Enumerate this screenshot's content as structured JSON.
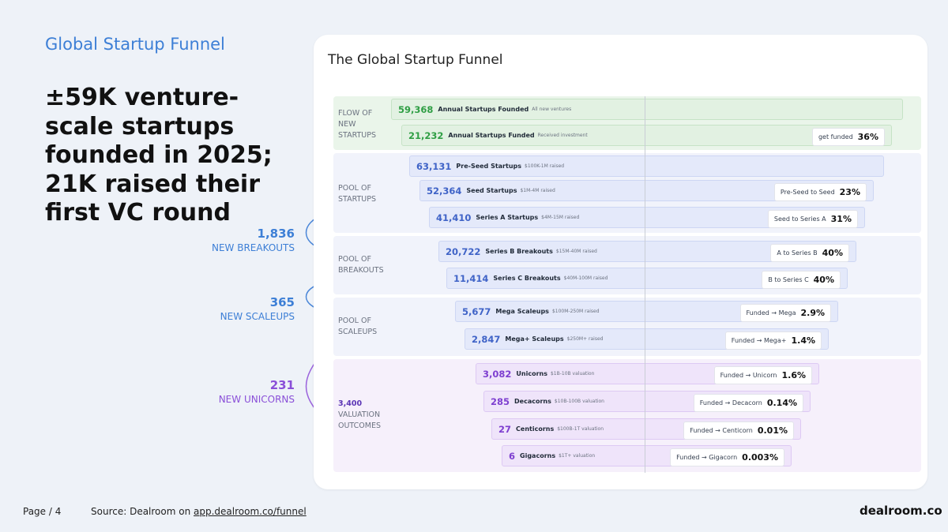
{
  "kicker": "Global Startup Funnel",
  "headline": "±59K venture-scale startups founded in 2025; 21K raised their first VC round",
  "side_stats": [
    {
      "value": "1,836",
      "label": "NEW BREAKOUTS",
      "color": "#3d7fd6"
    },
    {
      "value": "365",
      "label": "NEW SCALEUPS",
      "color": "#3d7fd6"
    },
    {
      "value": "231",
      "label": "NEW UNICORNS",
      "color": "#8a4fd8"
    }
  ],
  "footer": {
    "page": "Page / 4",
    "source_prefix": "Source: Dealroom on ",
    "source_link": "app.dealroom.co/funnel",
    "brand": "dealroom.co"
  },
  "chart_data": {
    "type": "funnel",
    "title": "The Global Startup Funnel",
    "groups": [
      {
        "label": "FLOW OF NEW STARTUPS",
        "bg": "#eaf5ea",
        "rows": [
          {
            "value": 59368,
            "display": "59,368",
            "name": "Annual Startups Founded",
            "detail": "All new ventures",
            "ratio_label": "",
            "ratio": ""
          },
          {
            "value": 21232,
            "display": "21,232",
            "name": "Annual Startups Funded",
            "detail": "Received investment",
            "ratio_label": "get funded",
            "ratio": "36%"
          }
        ]
      },
      {
        "label": "POOL OF STARTUPS",
        "bg": "#f1f3fb",
        "rows": [
          {
            "value": 63131,
            "display": "63,131",
            "name": "Pre-Seed Startups",
            "detail": "$100K-1M raised",
            "ratio_label": "",
            "ratio": ""
          },
          {
            "value": 52364,
            "display": "52,364",
            "name": "Seed Startups",
            "detail": "$1M-4M raised",
            "ratio_label": "Pre-Seed to Seed",
            "ratio": "23%"
          },
          {
            "value": 41410,
            "display": "41,410",
            "name": "Series A Startups",
            "detail": "$4M-15M raised",
            "ratio_label": "Seed to Series A",
            "ratio": "31%"
          }
        ]
      },
      {
        "label": "POOL OF BREAKOUTS",
        "bg": "#f1f3fb",
        "rows": [
          {
            "value": 20722,
            "display": "20,722",
            "name": "Series B Breakouts",
            "detail": "$15M-40M raised",
            "ratio_label": "A to Series B",
            "ratio": "40%"
          },
          {
            "value": 11414,
            "display": "11,414",
            "name": "Series C Breakouts",
            "detail": "$40M-100M raised",
            "ratio_label": "B to Series C",
            "ratio": "40%"
          }
        ]
      },
      {
        "label": "POOL OF SCALEUPS",
        "bg": "#f1f3fb",
        "rows": [
          {
            "value": 5677,
            "display": "5,677",
            "name": "Mega Scaleups",
            "detail": "$100M-250M raised",
            "ratio_label": "Funded → Mega",
            "ratio": "2.9%"
          },
          {
            "value": 2847,
            "display": "2,847",
            "name": "Mega+ Scaleups",
            "detail": "$250M+ raised",
            "ratio_label": "Funded → Mega+",
            "ratio": "1.4%"
          }
        ]
      },
      {
        "label": "VALUATION OUTCOMES",
        "total": "3,400",
        "bg": "#f6f0fb",
        "rows": [
          {
            "value": 3082,
            "display": "3,082",
            "name": "Unicorns",
            "detail": "$1B-10B valuation",
            "ratio_label": "Funded → Unicorn",
            "ratio": "1.6%"
          },
          {
            "value": 285,
            "display": "285",
            "name": "Decacorns",
            "detail": "$10B-100B valuation",
            "ratio_label": "Funded → Decacorn",
            "ratio": "0.14%"
          },
          {
            "value": 27,
            "display": "27",
            "name": "Centicorns",
            "detail": "$100B-1T valuation",
            "ratio_label": "Funded → Centicorn",
            "ratio": "0.01%"
          },
          {
            "value": 6,
            "display": "6",
            "name": "Gigacorns",
            "detail": "$1T+ valuation",
            "ratio_label": "Funded → Gigacorn",
            "ratio": "0.003%"
          }
        ]
      }
    ],
    "colors": {
      "green_bar": "#e2f1e2",
      "green_border": "#c6e3c6",
      "green_text": "#2f9e44",
      "blue_bar": "#e4e9fa",
      "blue_border": "#cdd6f3",
      "blue_text": "#3f63c7",
      "purple_bar": "#efe4fa",
      "purple_border": "#ddc9f3",
      "purple_text": "#7e3fd0"
    }
  }
}
